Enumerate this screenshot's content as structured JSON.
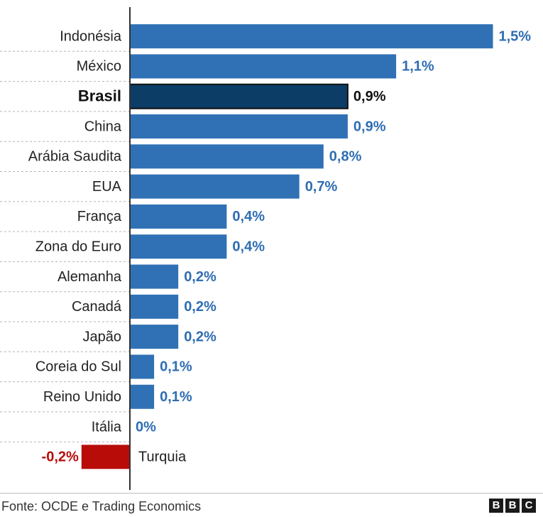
{
  "chart_data": {
    "type": "bar",
    "orientation": "horizontal",
    "categories": [
      "Indonésia",
      "México",
      "Brasil",
      "China",
      "Arábia Saudita",
      "EUA",
      "França",
      "Zona do Euro",
      "Alemanha",
      "Canadá",
      "Japão",
      "Coreia do Sul",
      "Reino Unido",
      "Itália",
      "Turquia"
    ],
    "values": [
      1.5,
      1.1,
      0.9,
      0.9,
      0.8,
      0.7,
      0.4,
      0.4,
      0.2,
      0.2,
      0.2,
      0.1,
      0.1,
      0,
      -0.2
    ],
    "value_labels": [
      "1,5%",
      "1,1%",
      "0,9%",
      "0,9%",
      "0,8%",
      "0,7%",
      "0,4%",
      "0,4%",
      "0,2%",
      "0,2%",
      "0,2%",
      "0,1%",
      "0,1%",
      "0%",
      "-0,2%"
    ],
    "highlight": "Brasil",
    "xlim": [
      -0.2,
      1.5
    ],
    "grid": false,
    "colors": {
      "positive": "#3071b5",
      "highlight": "#0b3d66",
      "negative": "#b80c09",
      "positive_label": "#2e6db3",
      "negative_label": "#b80c09",
      "highlight_label": "#111111"
    }
  },
  "footer": {
    "source": "Fonte: OCDE e Trading Economics",
    "logo_letters": [
      "B",
      "B",
      "C"
    ]
  }
}
